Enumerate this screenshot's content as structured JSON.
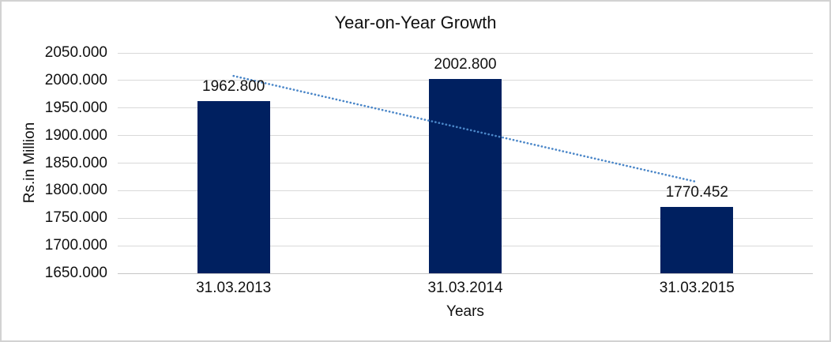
{
  "chart": {
    "title": "Year-on-Year Growth",
    "y_axis_title": "Rs.in Million",
    "x_axis_title": "Years"
  },
  "chart_data": {
    "type": "bar",
    "title": "Year-on-Year Growth",
    "xlabel": "Years",
    "ylabel": "Rs.in Million",
    "categories": [
      "31.03.2013",
      "31.03.2014",
      "31.03.2015"
    ],
    "values": [
      1962.8,
      2002.8,
      1770.452
    ],
    "data_labels": [
      "1962.800",
      "2002.800",
      "1770.452"
    ],
    "ylim": [
      1650,
      2050
    ],
    "ytick_step": 50,
    "ytick_labels": [
      "2050.000",
      "2000.000",
      "1950.000",
      "1900.000",
      "1850.000",
      "1800.000",
      "1750.000",
      "1700.000",
      "1650.000"
    ],
    "grid": "horizontal",
    "legend": "none",
    "trendline": {
      "type": "linear",
      "style": "dotted",
      "start_value": 2008.2,
      "end_value": 1815.8,
      "color": "#4a86c8"
    },
    "colors": {
      "bar": "#002060",
      "gridline": "#d9d9d9",
      "axis_line": "#c6c6c6",
      "text": "#111111",
      "frame_border": "#d2d2d2",
      "background": "#ffffff"
    }
  }
}
